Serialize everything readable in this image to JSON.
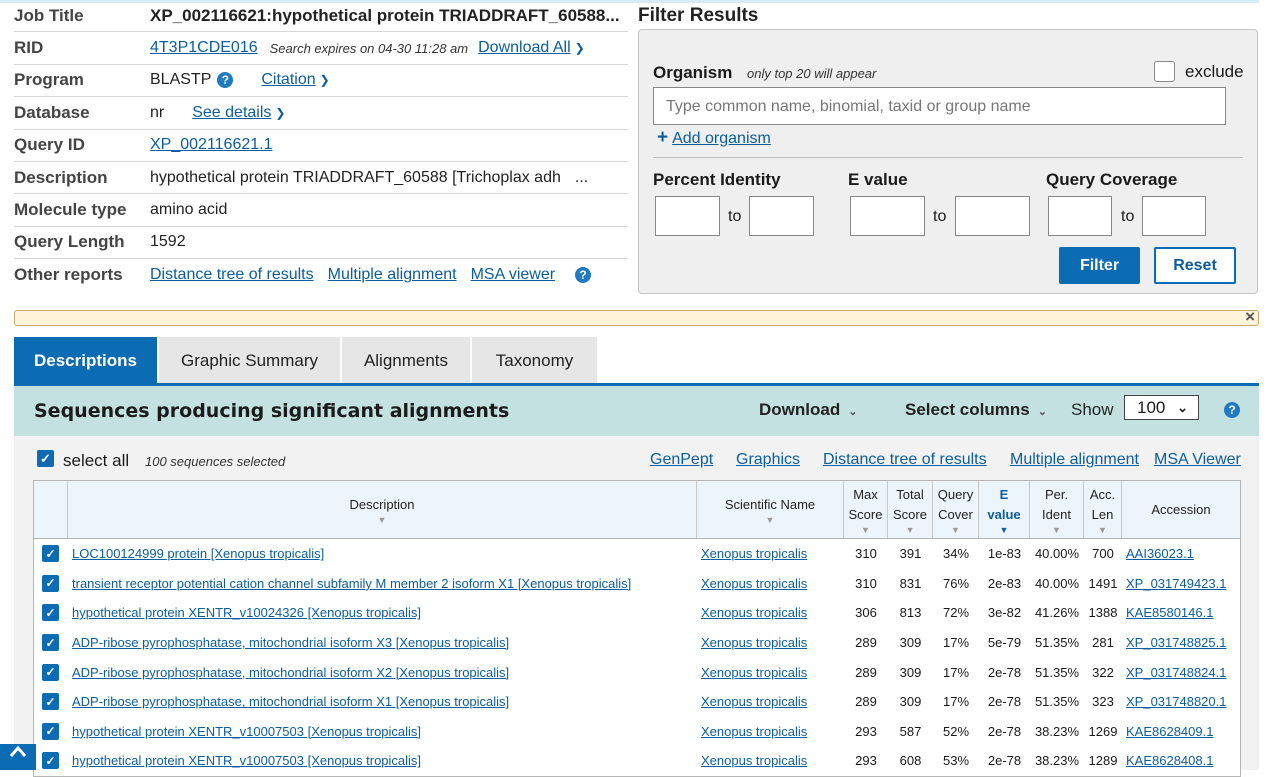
{
  "summary": {
    "job_title_label": "Job Title",
    "job_title": "XP_002116621:hypothetical protein TRIADDRAFT_60588...",
    "rid_label": "RID",
    "rid": "4T3P1CDE016",
    "expires": "Search expires on 04-30 11:28 am",
    "download_all": "Download All",
    "program_label": "Program",
    "program": "BLASTP",
    "citation": "Citation",
    "database_label": "Database",
    "database": "nr",
    "see_details": "See details",
    "query_id_label": "Query ID",
    "query_id": "XP_002116621.1",
    "description_label": "Description",
    "description": "hypothetical protein TRIADDRAFT_60588 [Trichoplax adh",
    "ellipsis": "...",
    "molecule_type_label": "Molecule type",
    "molecule_type": "amino acid",
    "query_length_label": "Query Length",
    "query_length": "1592",
    "other_reports_label": "Other reports",
    "other_reports": [
      "Distance tree of results",
      "Multiple alignment",
      "MSA viewer"
    ]
  },
  "filter": {
    "title": "Filter Results",
    "organism_label": "Organism",
    "organism_hint": "only top 20 will appear",
    "exclude_label": "exclude",
    "organism_placeholder": "Type common  name, binomial, taxid or group  name",
    "add_organism": "Add organism",
    "percent_identity": "Percent Identity",
    "e_value": "E value",
    "query_coverage": "Query Coverage",
    "to": "to",
    "filter_button": "Filter",
    "reset_button": "Reset"
  },
  "tabs": [
    "Descriptions",
    "Graphic Summary",
    "Alignments",
    "Taxonomy"
  ],
  "results": {
    "title": "Sequences producing significant alignments",
    "download": "Download",
    "select_columns": "Select columns",
    "show_label": "Show",
    "show_value": "100",
    "select_all": "select all",
    "selected_count": "100 sequences selected",
    "links": [
      "GenPept",
      "Graphics",
      "Distance tree of results",
      "Multiple alignment",
      "MSA Viewer"
    ]
  },
  "table": {
    "headers": [
      {
        "line1": "Description",
        "line2": ""
      },
      {
        "line1": "Scientific Name",
        "line2": ""
      },
      {
        "line1": "Max",
        "line2": "Score"
      },
      {
        "line1": "Total",
        "line2": "Score"
      },
      {
        "line1": "Query",
        "line2": "Cover"
      },
      {
        "line1": "E",
        "line2": "value"
      },
      {
        "line1": "Per.",
        "line2": "Ident"
      },
      {
        "line1": "Acc.",
        "line2": "Len"
      },
      {
        "line1": "Accession",
        "line2": ""
      }
    ],
    "rows": [
      {
        "desc": "LOC100124999 protein [Xenopus tropicalis]",
        "sci": "Xenopus tropicalis",
        "max": "310",
        "total": "391",
        "cover": "34%",
        "evalue": "1e-83",
        "ident": "40.00%",
        "len": "700",
        "acc": "AAI36023.1"
      },
      {
        "desc": "transient receptor potential cation channel subfamily M member 2 isoform X1 [Xenopus tropicalis]",
        "sci": "Xenopus tropicalis",
        "max": "310",
        "total": "831",
        "cover": "76%",
        "evalue": "2e-83",
        "ident": "40.00%",
        "len": "1491",
        "acc": "XP_031749423.1"
      },
      {
        "desc": "hypothetical protein XENTR_v10024326 [Xenopus tropicalis]",
        "sci": "Xenopus tropicalis",
        "max": "306",
        "total": "813",
        "cover": "72%",
        "evalue": "3e-82",
        "ident": "41.26%",
        "len": "1388",
        "acc": "KAE8580146.1"
      },
      {
        "desc": "ADP-ribose pyrophosphatase, mitochondrial isoform X3 [Xenopus tropicalis]",
        "sci": "Xenopus tropicalis",
        "max": "289",
        "total": "309",
        "cover": "17%",
        "evalue": "5e-79",
        "ident": "51.35%",
        "len": "281",
        "acc": "XP_031748825.1"
      },
      {
        "desc": "ADP-ribose pyrophosphatase, mitochondrial isoform X2 [Xenopus tropicalis]",
        "sci": "Xenopus tropicalis",
        "max": "289",
        "total": "309",
        "cover": "17%",
        "evalue": "2e-78",
        "ident": "51.35%",
        "len": "322",
        "acc": "XP_031748824.1"
      },
      {
        "desc": "ADP-ribose pyrophosphatase, mitochondrial isoform X1 [Xenopus tropicalis]",
        "sci": "Xenopus tropicalis",
        "max": "289",
        "total": "309",
        "cover": "17%",
        "evalue": "2e-78",
        "ident": "51.35%",
        "len": "323",
        "acc": "XP_031748820.1"
      },
      {
        "desc": "hypothetical protein XENTR_v10007503 [Xenopus tropicalis]",
        "sci": "Xenopus tropicalis",
        "max": "293",
        "total": "587",
        "cover": "52%",
        "evalue": "2e-78",
        "ident": "38.23%",
        "len": "1269",
        "acc": "KAE8628409.1"
      },
      {
        "desc": "hypothetical protein XENTR_v10007503 [Xenopus tropicalis]",
        "sci": "Xenopus tropicalis",
        "max": "293",
        "total": "608",
        "cover": "53%",
        "evalue": "2e-78",
        "ident": "38.23%",
        "len": "1289",
        "acc": "KAE8628408.1"
      }
    ]
  },
  "colors": {
    "accent": "#0b6bb3",
    "link": "#0b5d9e",
    "header_bg": "#c4e1e2",
    "warning_bg": "#fdf4da"
  }
}
